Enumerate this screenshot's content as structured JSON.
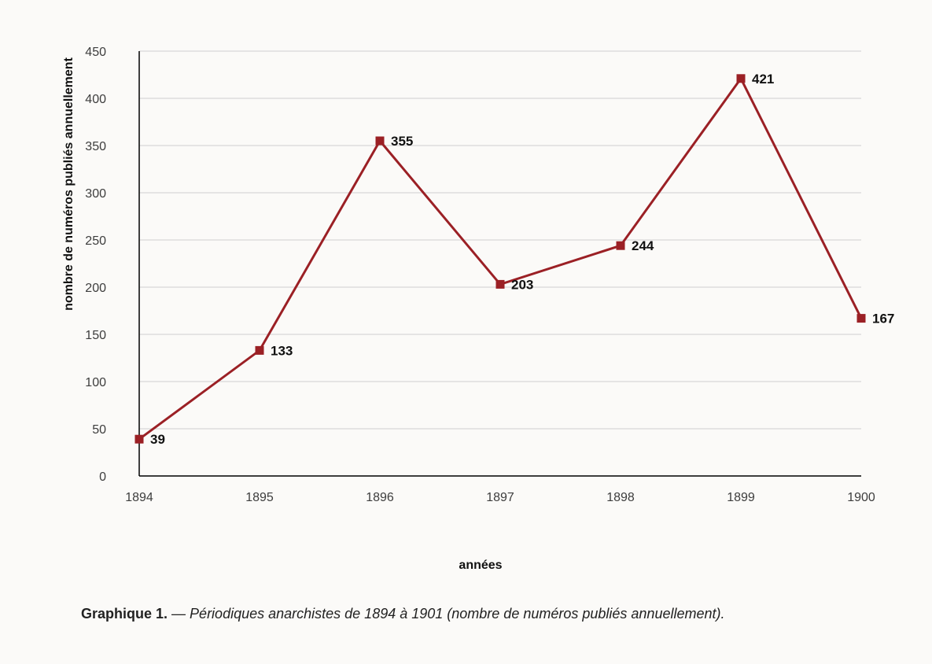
{
  "chart_data": {
    "type": "line",
    "x": [
      "1894",
      "1895",
      "1896",
      "1897",
      "1898",
      "1899",
      "1900"
    ],
    "series": [
      {
        "values": [
          39,
          133,
          355,
          203,
          244,
          421,
          167
        ],
        "color": "#9b2025"
      }
    ],
    "data_labels": [
      "39",
      "133",
      "355",
      "203",
      "244",
      "421",
      "167"
    ],
    "xlabel": "années",
    "ylabel": "nombre de numéros publiés annuellement",
    "ylim": [
      0,
      450
    ],
    "yticks": [
      0,
      50,
      100,
      150,
      200,
      250,
      300,
      350,
      400,
      450
    ],
    "grid": "horizontal",
    "marker": "square",
    "legend": "none"
  },
  "caption": {
    "prefix": "Graphique 1.",
    "text": "— Périodiques anarchistes de 1894 à 1901 (nombre de numéros publiés annuellement)."
  }
}
